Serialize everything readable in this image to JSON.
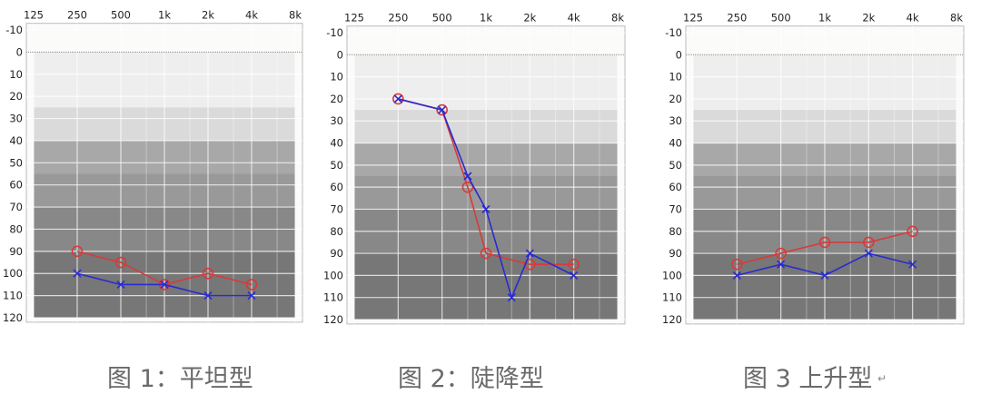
{
  "chart_data": [
    {
      "type": "line",
      "caption": "图 1：平坦型",
      "x_tick_labels": [
        "125",
        "250",
        "500",
        "1k",
        "2k",
        "4k",
        "8k"
      ],
      "y_tick_labels": [
        "-10",
        "0",
        "10",
        "20",
        "30",
        "40",
        "50",
        "60",
        "70",
        "80",
        "90",
        "100",
        "110",
        "120"
      ],
      "ylim": [
        -10,
        120
      ],
      "y_inverted": true,
      "x_scale": "log",
      "grid": true,
      "bands_dB": [
        [
          0,
          25,
          "#eeeeee"
        ],
        [
          25,
          40,
          "#dadada"
        ],
        [
          40,
          55,
          "#a8a8a8"
        ],
        [
          55,
          70,
          "#999999"
        ],
        [
          70,
          90,
          "#888888"
        ],
        [
          90,
          120,
          "#777777"
        ]
      ],
      "series": [
        {
          "marker": "circle",
          "color": "#d93a3a",
          "x": [
            250,
            500,
            1000,
            2000,
            4000
          ],
          "y": [
            90,
            95,
            105,
            100,
            105
          ]
        },
        {
          "marker": "cross",
          "color": "#2a2ad0",
          "x": [
            250,
            500,
            1000,
            2000,
            4000
          ],
          "y": [
            100,
            105,
            105,
            110,
            110
          ]
        }
      ]
    },
    {
      "type": "line",
      "caption": "图 2：陡降型",
      "x_tick_labels": [
        "125",
        "250",
        "500",
        "1k",
        "2k",
        "4k",
        "8k"
      ],
      "y_tick_labels": [
        "-10",
        "0",
        "10",
        "20",
        "30",
        "40",
        "50",
        "60",
        "70",
        "80",
        "90",
        "100",
        "110",
        "120"
      ],
      "ylim": [
        -10,
        120
      ],
      "y_inverted": true,
      "x_scale": "log",
      "grid": true,
      "bands_dB": [
        [
          0,
          25,
          "#eeeeee"
        ],
        [
          25,
          40,
          "#dadada"
        ],
        [
          40,
          55,
          "#a8a8a8"
        ],
        [
          55,
          70,
          "#999999"
        ],
        [
          70,
          90,
          "#888888"
        ],
        [
          90,
          120,
          "#777777"
        ]
      ],
      "series": [
        {
          "marker": "circle",
          "color": "#d93a3a",
          "x": [
            250,
            500,
            750,
            1000,
            2000,
            4000
          ],
          "y": [
            20,
            25,
            60,
            90,
            95,
            95
          ]
        },
        {
          "marker": "cross",
          "color": "#2a2ad0",
          "x": [
            250,
            500,
            750,
            1000,
            1500,
            2000,
            4000
          ],
          "y": [
            20,
            25,
            55,
            70,
            110,
            90,
            100
          ]
        }
      ]
    },
    {
      "type": "line",
      "caption": "图 3 上升型",
      "x_tick_labels": [
        "125",
        "250",
        "500",
        "1k",
        "2k",
        "4k",
        "8k"
      ],
      "y_tick_labels": [
        "-10",
        "0",
        "10",
        "20",
        "30",
        "40",
        "50",
        "60",
        "70",
        "80",
        "90",
        "100",
        "110",
        "120"
      ],
      "ylim": [
        -10,
        120
      ],
      "y_inverted": true,
      "x_scale": "log",
      "grid": true,
      "bands_dB": [
        [
          0,
          25,
          "#eeeeee"
        ],
        [
          25,
          40,
          "#dadada"
        ],
        [
          40,
          55,
          "#a8a8a8"
        ],
        [
          55,
          70,
          "#999999"
        ],
        [
          70,
          90,
          "#888888"
        ],
        [
          90,
          120,
          "#777777"
        ]
      ],
      "series": [
        {
          "marker": "circle",
          "color": "#d93a3a",
          "x": [
            250,
            500,
            1000,
            2000,
            4000
          ],
          "y": [
            95,
            90,
            85,
            85,
            80
          ]
        },
        {
          "marker": "cross",
          "color": "#2a2ad0",
          "x": [
            250,
            500,
            1000,
            2000,
            4000
          ],
          "y": [
            100,
            95,
            100,
            90,
            95
          ]
        }
      ]
    }
  ]
}
